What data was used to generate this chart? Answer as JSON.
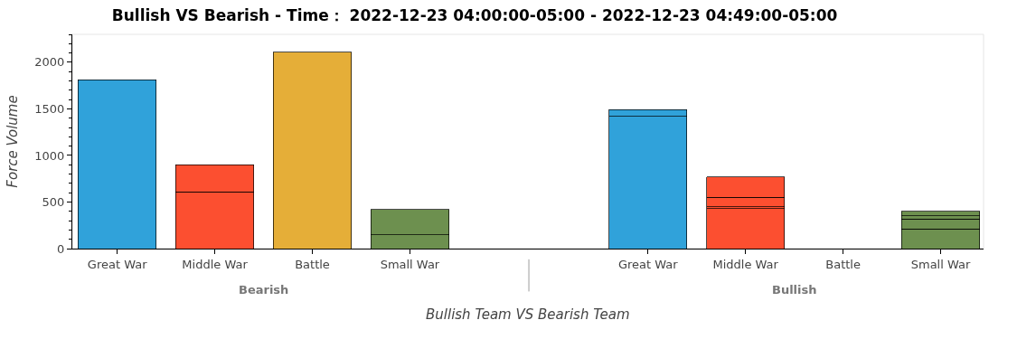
{
  "chart_data": {
    "type": "bar",
    "stacked": true,
    "title": "Bullish VS Bearish - Time： 2022-12-23 04:00:00-05:00 - 2022-12-23 04:49:00-05:00",
    "xlabel": "Bullish Team VS Bearish Team",
    "ylabel": "Force Volume",
    "categories": [
      "Great War",
      "Middle War",
      "Battle",
      "Small War",
      "Great War",
      "Middle War",
      "Battle",
      "Small War"
    ],
    "annotations": [
      "Bearish",
      "Bullish"
    ],
    "series": [
      {
        "colors": [
          "#30a2da",
          "#fc4f30",
          "#e5ae38",
          "#6d904f",
          "#30a2da",
          "#fc4f30",
          "#e5ae38",
          "#6d904f"
        ],
        "values": [
          1810,
          610,
          2110,
          150,
          1420,
          430,
          null,
          210
        ]
      },
      {
        "colors": [
          "#30a2da",
          "#fc4f30",
          "#e5ae38",
          "#6d904f",
          "#30a2da",
          "#fc4f30",
          "#e5ae38",
          "#6d904f"
        ],
        "values": [
          null,
          290,
          null,
          270,
          70,
          20,
          null,
          110
        ]
      },
      {
        "colors": [
          "#30a2da",
          "#fc4f30",
          "#e5ae38",
          "#6d904f",
          "#30a2da",
          "#fc4f30",
          "#e5ae38",
          "#6d904f"
        ],
        "values": [
          null,
          null,
          null,
          null,
          null,
          100,
          null,
          30
        ]
      },
      {
        "colors": [
          "#30a2da",
          "#fc4f30",
          "#e5ae38",
          "#6d904f",
          "#30a2da",
          "#fc4f30",
          "#e5ae38",
          "#6d904f"
        ],
        "values": [
          null,
          null,
          null,
          null,
          null,
          220,
          null,
          50
        ]
      }
    ],
    "ylim": [
      0,
      2300
    ],
    "yticks": [
      0,
      500,
      1000,
      1500,
      2000
    ],
    "grid": false,
    "legend": false
  }
}
